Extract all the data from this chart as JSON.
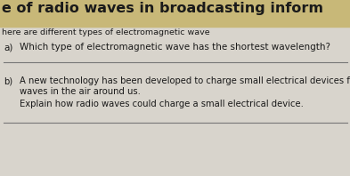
{
  "bg_top_color": "#c8b878",
  "bg_main_color": "#d8d4cc",
  "title_text": "e of radio waves in broadcasting inform",
  "title_fontsize": 11.5,
  "title_bold": true,
  "subtitle_text": "here are different types of electromagnetic wave",
  "subtitle_fontsize": 6.8,
  "q1_label": "a)",
  "q1_text": "Which type of electromagnetic wave has the shortest wavelength?",
  "q1_fontsize": 7.5,
  "q2_label": "b)",
  "q2_line1": "A new technology has been developed to charge small electrical devices from the radio",
  "q2_line2": "waves in the air around us.",
  "q2_fontsize": 7.2,
  "q2_subtext": "Explain how radio waves could charge a small electrical device.",
  "q2_subfontsize": 7.2,
  "text_color": "#1a1a1a",
  "line_color": "#777777",
  "title_bg": "#b8a060"
}
